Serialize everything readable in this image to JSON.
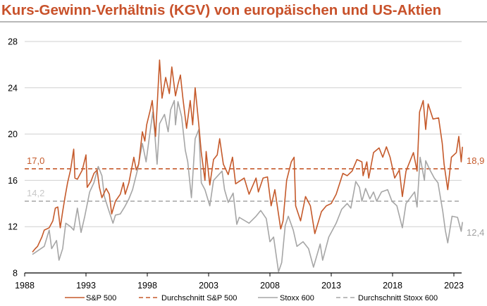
{
  "chart_data": {
    "type": "line",
    "title": "Kurs-Gewinn-Verhältnis (KGV) von europäischen und US-Aktien",
    "xlabel": "",
    "ylabel": "",
    "xlim": [
      1988,
      2024
    ],
    "ylim": [
      8,
      28
    ],
    "x_ticks": [
      "1988",
      "1993",
      "1998",
      "2003",
      "2008",
      "2013",
      "2018",
      "2023"
    ],
    "y_ticks": [
      "8",
      "12",
      "16",
      "20",
      "24",
      "28"
    ],
    "grid": "horizontal",
    "legend_position": "bottom",
    "colors": {
      "title": "#c8512a",
      "sp500": "#c55a2b",
      "stoxx": "#a6a6a6",
      "stoxx_avg_label": "#c8c8c8"
    },
    "series": [
      {
        "name": "S&P 500",
        "style": "solid",
        "color": "#c55a2b",
        "x": [
          1988.63,
          1988.86,
          1989.05,
          1989.4,
          1989.6,
          1990.0,
          1990.3,
          1990.5,
          1990.7,
          1990.9,
          1991.1,
          1991.3,
          1991.5,
          1991.74,
          1992.0,
          1992.1,
          1992.3,
          1992.7,
          1993.0,
          1993.1,
          1993.4,
          1993.65,
          1993.9,
          1994.1,
          1994.3,
          1994.65,
          1994.9,
          1995.1,
          1995.4,
          1995.8,
          1996.05,
          1996.2,
          1996.5,
          1996.9,
          1997.1,
          1997.3,
          1997.6,
          1997.8,
          1997.95,
          1998.25,
          1998.4,
          1998.67,
          1999.0,
          1999.2,
          1999.5,
          1999.8,
          2000.0,
          2000.3,
          2000.5,
          2000.7,
          2000.9,
          2001.2,
          2001.5,
          2001.7,
          2001.9,
          2002.2,
          2002.4,
          2002.7,
          2002.8,
          2003.1,
          2003.4,
          2003.7,
          2003.9,
          2004.2,
          2004.6,
          2004.95,
          2005.2,
          2005.9,
          2006.3,
          2006.87,
          2007.06,
          2007.44,
          2007.8,
          2008.1,
          2008.4,
          2008.88,
          2009.07,
          2009.36,
          2009.74,
          2009.97,
          2010.1,
          2010.5,
          2010.9,
          2011.3,
          2011.66,
          2012.2,
          2012.6,
          2013.0,
          2013.4,
          2013.95,
          2014.3,
          2014.7,
          2015.1,
          2015.5,
          2015.6,
          2015.9,
          2016.06,
          2016.45,
          2016.9,
          2017.2,
          2017.5,
          2017.8,
          2018.17,
          2018.55,
          2018.8,
          2019.1,
          2019.7,
          2020.0,
          2020.2,
          2020.5,
          2020.7,
          2020.9,
          2021.3,
          2021.75,
          2022.05,
          2022.2,
          2022.5,
          2022.8,
          2023.2,
          2023.4,
          2023.6,
          2023.7
        ],
        "values": [
          9.8,
          10.1,
          10.3,
          11.1,
          11.7,
          11.9,
          12.5,
          13.6,
          13.7,
          11.9,
          13.3,
          14.6,
          15.8,
          16.9,
          18.7,
          16.2,
          16.1,
          16.9,
          18.2,
          15.4,
          15.9,
          16.6,
          16.9,
          15.4,
          14.5,
          15.3,
          14.8,
          13.1,
          14.2,
          14.8,
          15.8,
          14.8,
          15.8,
          18.0,
          16.9,
          17.4,
          20.2,
          19.4,
          20.8,
          22.1,
          22.9,
          19.8,
          26.4,
          23.1,
          24.9,
          23.5,
          25.8,
          23.3,
          24.3,
          25.1,
          23.1,
          20.5,
          22.9,
          20.8,
          24.0,
          20.8,
          18.4,
          16.0,
          18.5,
          15.6,
          17.8,
          18.2,
          19.6,
          17.4,
          16.5,
          18.0,
          15.7,
          16.2,
          14.8,
          16.2,
          15.0,
          16.2,
          16.3,
          13.8,
          15.2,
          11.8,
          12.5,
          16.0,
          17.6,
          18.0,
          13.8,
          12.5,
          14.6,
          13.8,
          11.4,
          13.3,
          13.8,
          14.0,
          14.8,
          16.6,
          16.4,
          16.8,
          17.8,
          17.6,
          16.4,
          17.6,
          16.2,
          18.4,
          18.8,
          18.0,
          18.9,
          18.0,
          16.2,
          16.9,
          14.6,
          16.8,
          18.4,
          16.8,
          21.9,
          22.9,
          20.4,
          22.6,
          21.3,
          21.4,
          19.2,
          17.4,
          15.2,
          18.0,
          18.4,
          19.8,
          17.6,
          18.9
        ]
      },
      {
        "name": "Durchschnitt S&P 500",
        "style": "dashed",
        "color": "#c55a2b",
        "value": 17.0
      },
      {
        "name": "Stoxx 600",
        "style": "solid",
        "color": "#a6a6a6",
        "x": [
          1988.63,
          1989.05,
          1989.6,
          1990.0,
          1990.2,
          1990.6,
          1990.8,
          1991.1,
          1991.35,
          1991.74,
          1992.0,
          1992.3,
          1992.6,
          1992.9,
          1993.3,
          1993.65,
          1994.0,
          1994.3,
          1994.5,
          1994.8,
          1995.2,
          1995.4,
          1995.8,
          1996.15,
          1996.5,
          1996.8,
          1997.2,
          1997.6,
          1997.9,
          1998.15,
          1998.45,
          1998.6,
          1998.8,
          1999.0,
          1999.4,
          1999.7,
          1999.9,
          2000.2,
          2000.3,
          2000.5,
          2000.8,
          2001.1,
          2001.3,
          2001.6,
          2001.9,
          2002.2,
          2002.4,
          2002.7,
          2003.1,
          2003.4,
          2004.1,
          2004.3,
          2004.6,
          2005.0,
          2005.3,
          2005.5,
          2006.3,
          2006.87,
          2007.25,
          2007.7,
          2008.0,
          2008.3,
          2008.7,
          2008.96,
          2009.25,
          2009.5,
          2009.9,
          2010.2,
          2010.7,
          2011.15,
          2011.55,
          2012.1,
          2012.3,
          2012.8,
          2013.4,
          2013.85,
          2014.3,
          2014.6,
          2015.0,
          2015.3,
          2015.5,
          2015.8,
          2016.15,
          2016.45,
          2016.7,
          2017.1,
          2017.6,
          2017.95,
          2018.35,
          2018.8,
          2019.1,
          2019.8,
          2020.0,
          2020.25,
          2020.6,
          2020.7,
          2021.0,
          2021.4,
          2021.7,
          2022.1,
          2022.3,
          2022.5,
          2022.85,
          2023.3,
          2023.6,
          2023.7
        ],
        "values": [
          9.6,
          9.9,
          10.3,
          11.7,
          10.1,
          10.8,
          9.1,
          10.1,
          12.3,
          12.0,
          11.7,
          13.6,
          11.5,
          12.9,
          15.0,
          15.8,
          17.2,
          16.4,
          14.6,
          13.6,
          12.3,
          13.0,
          13.1,
          13.7,
          14.4,
          15.2,
          16.9,
          19.2,
          17.6,
          19.6,
          21.9,
          20.2,
          17.4,
          20.9,
          21.7,
          20.2,
          22.1,
          22.9,
          20.8,
          22.8,
          21.5,
          18.6,
          17.6,
          14.5,
          19.6,
          20.4,
          15.8,
          15.2,
          13.8,
          16.0,
          16.8,
          15.2,
          14.1,
          14.9,
          12.2,
          12.8,
          12.3,
          12.9,
          13.4,
          12.7,
          10.7,
          11.1,
          8.1,
          8.9,
          12.1,
          12.9,
          11.7,
          10.3,
          10.7,
          10.1,
          8.5,
          10.5,
          9.1,
          11.1,
          12.3,
          13.5,
          14.0,
          13.6,
          15.9,
          15.4,
          14.2,
          15.3,
          14.4,
          15.0,
          14.2,
          15.0,
          15.2,
          14.2,
          13.8,
          11.9,
          14.0,
          15.0,
          13.7,
          18.0,
          16.0,
          17.7,
          17.0,
          16.2,
          15.8,
          13.3,
          11.7,
          10.6,
          12.9,
          12.8,
          11.6,
          12.4
        ]
      },
      {
        "name": "Durchschnitt Stoxx 600",
        "style": "dashed",
        "color": "#a6a6a6",
        "value": 14.2
      }
    ],
    "annotations": {
      "sp_avg": "17,0",
      "stoxx_avg": "14,2",
      "sp_last": "18,9",
      "stoxx_last": "12,4"
    }
  }
}
